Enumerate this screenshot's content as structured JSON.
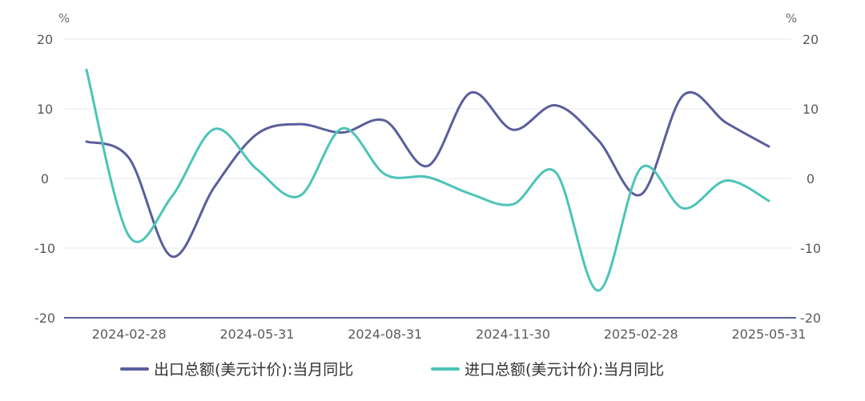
{
  "chart_data": {
    "type": "line",
    "y_unit_left": "%",
    "y_unit_right": "%",
    "ylim": [
      -20,
      20
    ],
    "yticks": [
      "20",
      "10",
      "0",
      "-10",
      "-20"
    ],
    "xlabels": [
      "2024-02-28",
      "2024-05-31",
      "2024-08-31",
      "2024-11-30",
      "2025-02-28",
      "2025-05-31"
    ],
    "x": [
      "2024-01",
      "2024-02",
      "2024-03",
      "2024-04",
      "2024-05",
      "2024-06",
      "2024-07",
      "2024-08",
      "2024-09",
      "2024-10",
      "2024-11",
      "2024-12",
      "2025-01",
      "2025-02",
      "2025-03",
      "2025-04",
      "2025-05"
    ],
    "grid": true,
    "legend_position": "bottom",
    "series": [
      {
        "name": "出口总额(美元计价):当月同比",
        "color": "#5a5e9c",
        "values": [
          5.3,
          2.9,
          -11.2,
          -1.2,
          6.4,
          7.8,
          6.6,
          8.3,
          1.8,
          12.3,
          7.0,
          10.5,
          5.5,
          -2.3,
          12.0,
          8.0,
          4.6
        ]
      },
      {
        "name": "进口总额(美元计价):当月同比",
        "color": "#4cc4b7",
        "values": [
          15.6,
          -8.3,
          -2.6,
          7.1,
          1.3,
          -2.5,
          7.2,
          0.6,
          0.2,
          -2.2,
          -3.7,
          0.9,
          -16.1,
          1.5,
          -4.3,
          -0.3,
          -3.2
        ]
      }
    ]
  }
}
